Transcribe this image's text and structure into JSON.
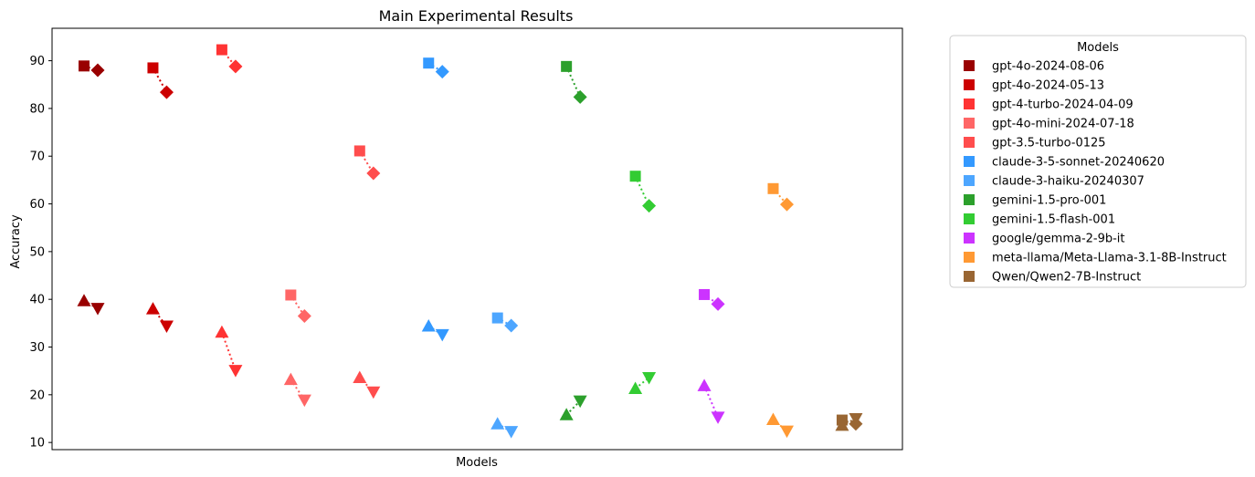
{
  "chart_data": {
    "type": "scatter",
    "title": "Main Experimental Results",
    "xlabel": "Models",
    "ylabel": "Accuracy",
    "ylim": [
      8.5,
      96.8
    ],
    "yticks": [
      10,
      20,
      30,
      40,
      50,
      60,
      70,
      80,
      90
    ],
    "xticks_shown": false,
    "grid": false,
    "legend": {
      "title": "Models",
      "placement": "outside-right"
    },
    "marker_meaning": "square→diamond and up-triangle→down-triangle pairs connected by dotted lines (printed labels not shown)",
    "series": [
      {
        "name": "gpt-4o-2024-08-06",
        "color": "#990000",
        "pairs": [
          {
            "x": 1,
            "square": 88.9,
            "diamond": 88.0
          },
          {
            "x": 1,
            "triangle_up": 39.7,
            "triangle_down": 38.1
          }
        ]
      },
      {
        "name": "gpt-4o-2024-05-13",
        "color": "#cc0000",
        "pairs": [
          {
            "x": 2,
            "square": 88.5,
            "diamond": 83.4
          },
          {
            "x": 2,
            "triangle_up": 38.0,
            "triangle_down": 34.4
          }
        ]
      },
      {
        "name": "gpt-4-turbo-2024-04-09",
        "color": "#ff3333",
        "pairs": [
          {
            "x": 3,
            "square": 92.3,
            "diamond": 88.8
          },
          {
            "x": 3,
            "triangle_up": 33.1,
            "triangle_down": 25.1
          }
        ]
      },
      {
        "name": "gpt-4o-mini-2024-07-18",
        "color": "#ff6666",
        "pairs": [
          {
            "x": 4,
            "square": 40.9,
            "diamond": 36.5
          },
          {
            "x": 4,
            "triangle_up": 23.2,
            "triangle_down": 18.9
          }
        ]
      },
      {
        "name": "gpt-3.5-turbo-0125",
        "color": "#ff4d4d",
        "pairs": [
          {
            "x": 5,
            "square": 71.1,
            "diamond": 66.4
          },
          {
            "x": 5,
            "triangle_up": 23.6,
            "triangle_down": 20.6
          }
        ]
      },
      {
        "name": "claude-3-5-sonnet-20240620",
        "color": "#3399ff",
        "pairs": [
          {
            "x": 6,
            "square": 89.5,
            "diamond": 87.7
          },
          {
            "x": 6,
            "triangle_up": 34.4,
            "triangle_down": 32.6
          }
        ]
      },
      {
        "name": "claude-3-haiku-20240307",
        "color": "#4da6ff",
        "pairs": [
          {
            "x": 7,
            "square": 36.1,
            "diamond": 34.5
          },
          {
            "x": 7,
            "triangle_up": 13.9,
            "triangle_down": 12.3
          }
        ]
      },
      {
        "name": "gemini-1.5-pro-001",
        "color": "#2ca02c",
        "pairs": [
          {
            "x": 8,
            "square": 88.8,
            "diamond": 82.4
          },
          {
            "x": 8,
            "triangle_up": 15.8,
            "triangle_down": 18.7
          }
        ]
      },
      {
        "name": "gemini-1.5-flash-001",
        "color": "#33cc33",
        "pairs": [
          {
            "x": 9,
            "square": 65.8,
            "diamond": 59.6
          },
          {
            "x": 9,
            "triangle_up": 21.3,
            "triangle_down": 23.6
          }
        ]
      },
      {
        "name": "google/gemma-2-9b-it",
        "color": "#cc33ff",
        "pairs": [
          {
            "x": 10,
            "square": 41.0,
            "diamond": 39.0
          },
          {
            "x": 10,
            "triangle_up": 21.9,
            "triangle_down": 15.3
          }
        ]
      },
      {
        "name": "meta-llama/Meta-Llama-3.1-8B-Instruct",
        "color": "#ff9933",
        "pairs": [
          {
            "x": 11,
            "square": 63.2,
            "diamond": 59.9
          },
          {
            "x": 11,
            "triangle_up": 14.8,
            "triangle_down": 12.4
          }
        ]
      },
      {
        "name": "Qwen/Qwen2-7B-Instruct",
        "color": "#996633",
        "pairs": [
          {
            "x": 12,
            "square": 14.7,
            "diamond": 13.9
          },
          {
            "x": 12,
            "triangle_up": 13.6,
            "triangle_down": 15.0
          }
        ]
      }
    ]
  }
}
